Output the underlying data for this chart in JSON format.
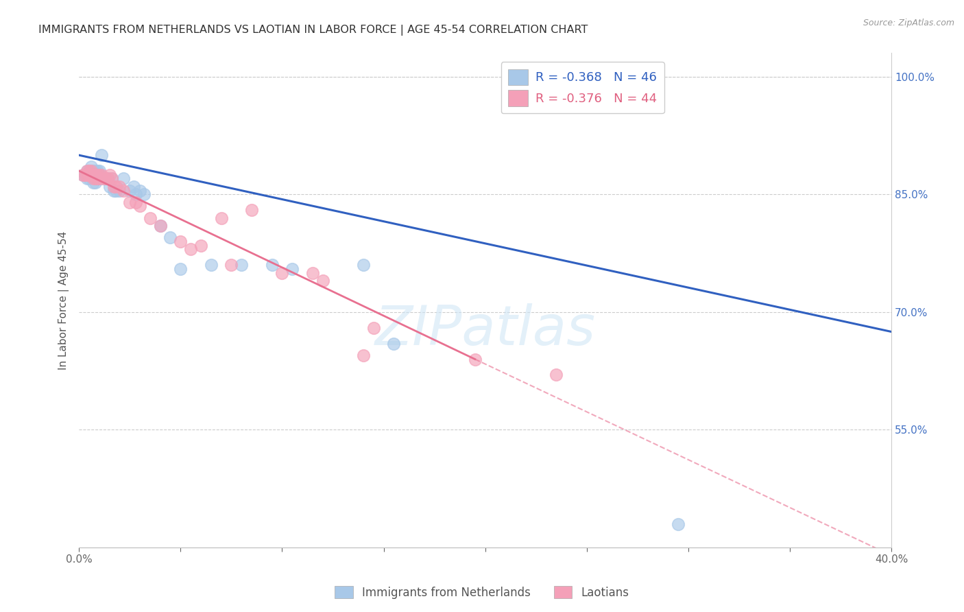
{
  "title": "IMMIGRANTS FROM NETHERLANDS VS LAOTIAN IN LABOR FORCE | AGE 45-54 CORRELATION CHART",
  "source": "Source: ZipAtlas.com",
  "ylabel": "In Labor Force | Age 45-54",
  "xlim": [
    0.0,
    0.4
  ],
  "ylim": [
    0.4,
    1.03
  ],
  "y_ticks_right": [
    1.0,
    0.85,
    0.7,
    0.55
  ],
  "y_tick_labels_right": [
    "100.0%",
    "85.0%",
    "70.0%",
    "55.0%"
  ],
  "legend_r1": "R = -0.368",
  "legend_n1": "N = 46",
  "legend_r2": "R = -0.376",
  "legend_n2": "N = 44",
  "netherlands_color": "#a8c8e8",
  "laotian_color": "#f4a0b8",
  "trend_netherlands_color": "#3060c0",
  "trend_laotian_color": "#e87090",
  "watermark": "ZIPatlas",
  "background_color": "#ffffff",
  "netherlands_x": [
    0.002,
    0.003,
    0.004,
    0.004,
    0.005,
    0.005,
    0.005,
    0.006,
    0.006,
    0.006,
    0.007,
    0.007,
    0.007,
    0.008,
    0.008,
    0.008,
    0.009,
    0.009,
    0.01,
    0.01,
    0.011,
    0.011,
    0.012,
    0.013,
    0.014,
    0.015,
    0.016,
    0.017,
    0.018,
    0.02,
    0.022,
    0.025,
    0.027,
    0.028,
    0.03,
    0.032,
    0.04,
    0.045,
    0.05,
    0.065,
    0.08,
    0.095,
    0.105,
    0.14,
    0.155,
    0.295
  ],
  "netherlands_y": [
    0.875,
    0.875,
    0.88,
    0.87,
    0.87,
    0.875,
    0.88,
    0.875,
    0.88,
    0.885,
    0.865,
    0.875,
    0.88,
    0.865,
    0.87,
    0.88,
    0.87,
    0.88,
    0.87,
    0.88,
    0.87,
    0.9,
    0.87,
    0.87,
    0.87,
    0.86,
    0.87,
    0.855,
    0.855,
    0.855,
    0.87,
    0.855,
    0.86,
    0.85,
    0.855,
    0.85,
    0.81,
    0.795,
    0.755,
    0.76,
    0.76,
    0.76,
    0.755,
    0.76,
    0.66,
    0.43
  ],
  "laotian_x": [
    0.002,
    0.003,
    0.004,
    0.004,
    0.005,
    0.005,
    0.006,
    0.006,
    0.007,
    0.007,
    0.008,
    0.008,
    0.009,
    0.009,
    0.01,
    0.01,
    0.011,
    0.012,
    0.013,
    0.014,
    0.015,
    0.016,
    0.017,
    0.018,
    0.02,
    0.022,
    0.025,
    0.028,
    0.03,
    0.035,
    0.04,
    0.05,
    0.055,
    0.06,
    0.07,
    0.075,
    0.085,
    0.1,
    0.115,
    0.12,
    0.14,
    0.145,
    0.195,
    0.235
  ],
  "laotian_y": [
    0.875,
    0.875,
    0.875,
    0.88,
    0.875,
    0.88,
    0.875,
    0.88,
    0.87,
    0.875,
    0.87,
    0.875,
    0.87,
    0.875,
    0.87,
    0.875,
    0.875,
    0.87,
    0.87,
    0.87,
    0.875,
    0.87,
    0.86,
    0.86,
    0.86,
    0.855,
    0.84,
    0.84,
    0.835,
    0.82,
    0.81,
    0.79,
    0.78,
    0.785,
    0.82,
    0.76,
    0.83,
    0.75,
    0.75,
    0.74,
    0.645,
    0.68,
    0.64,
    0.62
  ],
  "trend_nl_x0": 0.0,
  "trend_nl_y0": 0.9,
  "trend_nl_x1": 0.4,
  "trend_nl_y1": 0.675,
  "trend_lao_x0": 0.0,
  "trend_lao_y0": 0.88,
  "trend_lao_x1": 0.195,
  "trend_lao_y1": 0.64,
  "trend_lao_dash_x0": 0.195,
  "trend_lao_dash_y0": 0.64,
  "trend_lao_dash_x1": 0.4,
  "trend_lao_dash_y1": 0.39
}
